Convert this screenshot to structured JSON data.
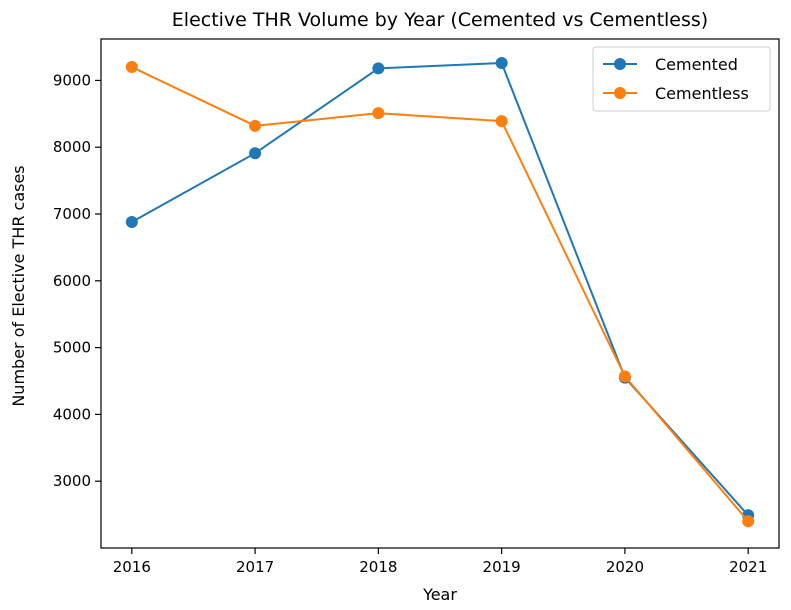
{
  "chart_data": {
    "type": "line",
    "title": "Elective THR Volume by Year (Cemented vs Cementless)",
    "xlabel": "Year",
    "ylabel": "Number of Elective THR cases",
    "x": [
      2016,
      2017,
      2018,
      2019,
      2020,
      2021
    ],
    "x_tick_labels": [
      "2016",
      "2017",
      "2018",
      "2019",
      "2020",
      "2021"
    ],
    "y_ticks": [
      3000,
      4000,
      5000,
      6000,
      7000,
      8000,
      9000
    ],
    "y_tick_labels": [
      "3000",
      "4000",
      "5000",
      "6000",
      "7000",
      "8000",
      "9000"
    ],
    "xlim": [
      2015.75,
      2021.25
    ],
    "ylim": [
      2000,
      9620
    ],
    "grid": false,
    "legend_position": "top-right",
    "series": [
      {
        "name": "Cemented",
        "color": "#1f77b4",
        "marker": "circle",
        "values": [
          6880,
          7910,
          9180,
          9260,
          4550,
          2490
        ]
      },
      {
        "name": "Cementless",
        "color": "#ff7f0e",
        "marker": "circle",
        "values": [
          9200,
          8320,
          8510,
          8390,
          4570,
          2400
        ]
      }
    ]
  }
}
